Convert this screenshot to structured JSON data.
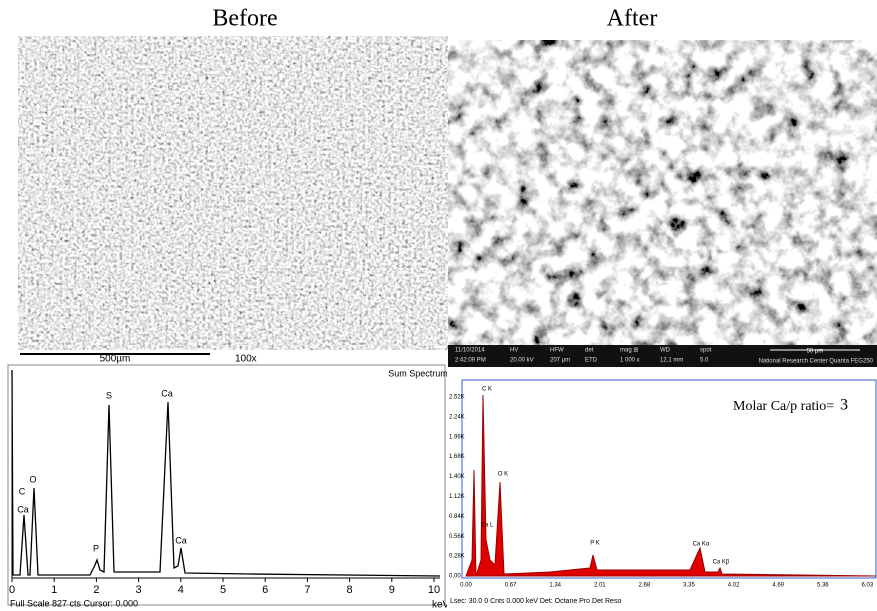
{
  "labels": {
    "before": "Before",
    "after": "After"
  },
  "sem_before": {
    "scale_bar": "500µm",
    "magnification": "100x"
  },
  "sem_after": {
    "info_bar": [
      [
        "11/10/2014",
        "2:42:09 PM"
      ],
      [
        "HV",
        "20.00 kV"
      ],
      [
        "HFW",
        "207 µm"
      ],
      [
        "det",
        "ETD"
      ],
      [
        "mag ⊞",
        "1 000 x"
      ],
      [
        "WD",
        "12.1 mm"
      ],
      [
        "spot",
        "5.0"
      ]
    ],
    "scale": "50 µm",
    "credit": "National Research Center  Quanta FEG250"
  },
  "eds_before": {
    "title": "Sum Spectrum",
    "peaks": [
      "C",
      "Ca",
      "O",
      "P",
      "S",
      "Ca",
      "Ca"
    ],
    "xticks": [
      "0",
      "1",
      "2",
      "3",
      "4",
      "5",
      "6",
      "7",
      "8",
      "9",
      "10"
    ],
    "x_unit": "keV",
    "footer": "Full Scale 827 cts Cursor: 0.000"
  },
  "eds_after": {
    "annotation_text": "Molar Ca/p ratio=",
    "annotation_value": "3",
    "yticks": [
      "0.00",
      "0.28K",
      "0.56K",
      "0.84K",
      "1.12K",
      "1.40K",
      "1.68K",
      "1.96K",
      "2.24K",
      "2.52K"
    ],
    "xticks": [
      "0.00",
      "0.67",
      "1.34",
      "2.01",
      "2.68",
      "3.35",
      "4.02",
      "4.69",
      "5.36",
      "6.03"
    ],
    "peaks": [
      "C K",
      "O K",
      "Ca L",
      "P K",
      "Ca Kα",
      "Ca Kβ"
    ],
    "footer": "Lsec: 30.0  0 Cnts  0.000 keV  Det: Octane Pro Det",
    "footer2": "Reso"
  }
}
